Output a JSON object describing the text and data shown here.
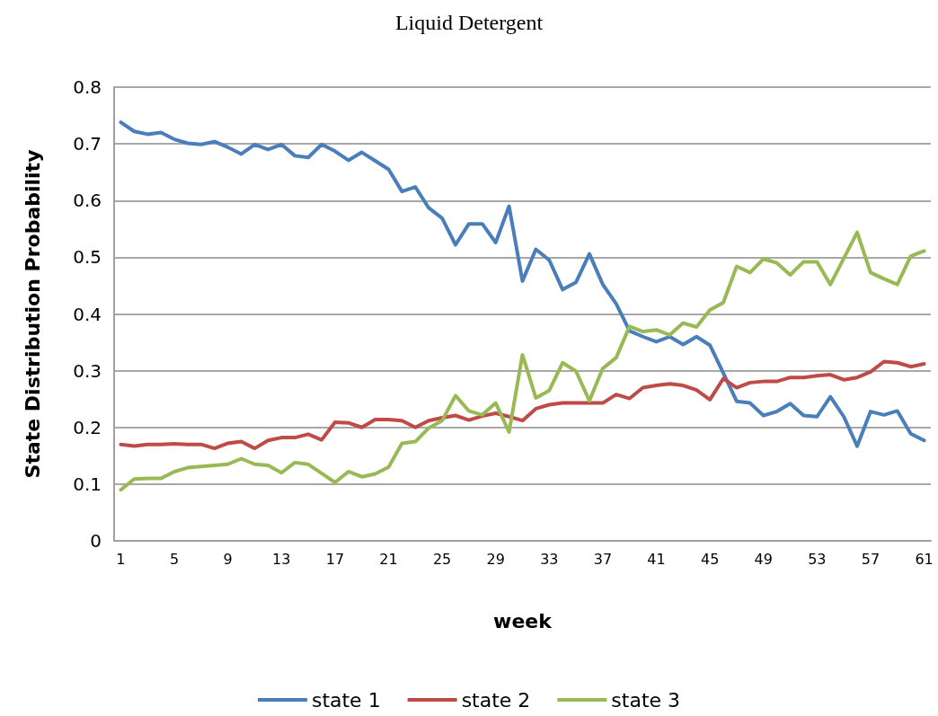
{
  "chart_data": {
    "type": "line",
    "title": "Liquid Detergent",
    "xlabel": "week",
    "ylabel": "State Distribution Probability",
    "categories": [
      "1",
      null,
      null,
      null,
      "5",
      null,
      null,
      null,
      "9",
      null,
      null,
      null,
      "13",
      null,
      null,
      null,
      "17",
      null,
      null,
      null,
      "21",
      null,
      null,
      null,
      "25",
      null,
      null,
      null,
      "29",
      null,
      null,
      null,
      "33",
      null,
      null,
      null,
      "37",
      null,
      null,
      null,
      "41",
      null,
      null,
      null,
      "45",
      null,
      null,
      null,
      "49",
      null,
      null,
      null,
      "53",
      null,
      null,
      null,
      "57",
      null,
      null,
      null,
      "61"
    ],
    "series": [
      {
        "name": "state 1",
        "color": "#4a7ebb",
        "values": [
          0.738,
          0.722,
          0.717,
          0.72,
          0.708,
          0.701,
          0.699,
          0.704,
          0.694,
          0.682,
          0.699,
          0.69,
          0.699,
          0.679,
          0.676,
          0.699,
          0.687,
          0.671,
          0.685,
          0.67,
          0.655,
          0.616,
          0.624,
          0.587,
          0.569,
          0.522,
          0.559,
          0.559,
          0.526,
          0.59,
          0.458,
          0.514,
          0.495,
          0.443,
          0.456,
          0.506,
          0.452,
          0.418,
          0.37,
          0.36,
          0.351,
          0.36,
          0.346,
          0.36,
          0.345,
          0.296,
          0.246,
          0.243,
          0.221,
          0.228,
          0.242,
          0.221,
          0.219,
          0.254,
          0.219,
          0.167,
          0.228,
          0.222,
          0.229,
          0.189,
          0.177
        ]
      },
      {
        "name": "state 2",
        "color": "#be4b48",
        "values": [
          0.17,
          0.167,
          0.17,
          0.17,
          0.171,
          0.17,
          0.17,
          0.163,
          0.172,
          0.175,
          0.163,
          0.177,
          0.182,
          0.182,
          0.188,
          0.178,
          0.209,
          0.208,
          0.2,
          0.214,
          0.214,
          0.212,
          0.2,
          0.212,
          0.217,
          0.221,
          0.213,
          0.22,
          0.225,
          0.219,
          0.212,
          0.233,
          0.24,
          0.243,
          0.243,
          0.243,
          0.243,
          0.258,
          0.251,
          0.27,
          0.274,
          0.277,
          0.274,
          0.266,
          0.249,
          0.286,
          0.27,
          0.279,
          0.281,
          0.281,
          0.288,
          0.288,
          0.291,
          0.293,
          0.284,
          0.288,
          0.298,
          0.316,
          0.314,
          0.307,
          0.312
        ]
      },
      {
        "name": "state 3",
        "color": "#98b954",
        "values": [
          0.09,
          0.109,
          0.11,
          0.11,
          0.122,
          0.129,
          0.131,
          0.133,
          0.135,
          0.145,
          0.135,
          0.133,
          0.12,
          0.138,
          0.135,
          0.119,
          0.103,
          0.122,
          0.113,
          0.118,
          0.13,
          0.172,
          0.175,
          0.199,
          0.212,
          0.256,
          0.229,
          0.222,
          0.243,
          0.192,
          0.328,
          0.252,
          0.265,
          0.314,
          0.299,
          0.247,
          0.304,
          0.323,
          0.378,
          0.369,
          0.372,
          0.363,
          0.384,
          0.377,
          0.407,
          0.42,
          0.484,
          0.473,
          0.497,
          0.49,
          0.469,
          0.492,
          0.492,
          0.452,
          0.498,
          0.544,
          0.473,
          0.462,
          0.452,
          0.502,
          0.511
        ]
      }
    ],
    "ylim": [
      0,
      0.8
    ],
    "yticks": [
      0,
      0.1,
      0.2,
      0.3,
      0.4,
      0.5,
      0.6,
      0.7,
      0.8
    ],
    "grid": "y",
    "legend": "bottom",
    "marker": "none",
    "line_style": "solid"
  }
}
